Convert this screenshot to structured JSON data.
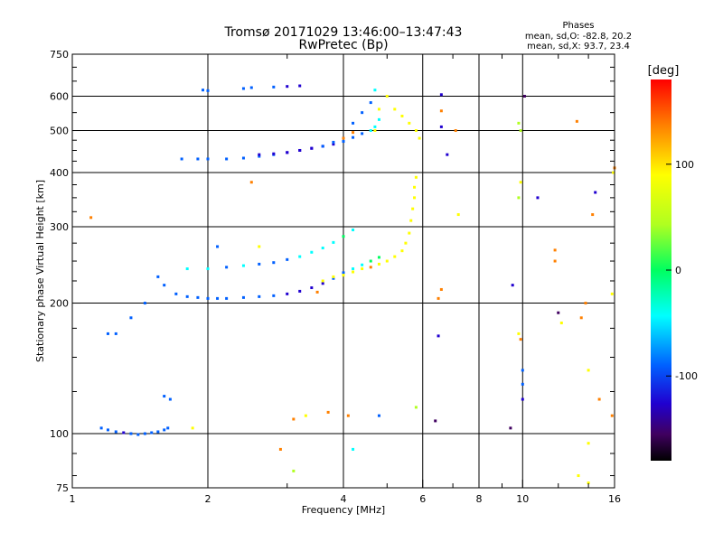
{
  "chart_data": {
    "type": "scatter",
    "title": "Tromsø 20171029 13:46:00–13:47:43",
    "subtitle": "RwPretec (Bp)",
    "xlabel": "Frequency [MHz]",
    "ylabel": "Stationary phase Virtual Height [km]",
    "xscale": "log",
    "yscale": "log",
    "xlim": [
      1,
      16
    ],
    "ylim": [
      75,
      750
    ],
    "x_ticks": [
      "1",
      "2",
      "4",
      "6",
      "8",
      "10",
      "16"
    ],
    "y_ticks": [
      "75",
      "100",
      "200",
      "300",
      "400",
      "500",
      "600",
      "750"
    ],
    "x_gridlines": [
      2,
      4,
      6,
      8,
      10
    ],
    "y_gridlines": [
      100,
      200,
      300,
      400,
      500,
      600
    ],
    "grid": true,
    "phases_box": {
      "title": "Phases",
      "line1": "mean, sd,O: -82.8, 20.2",
      "line2": "mean, sd,X:  93.7, 23.4"
    },
    "colorbar": {
      "unit": "[deg]",
      "tick_labels": [
        "100",
        "0",
        "-100"
      ],
      "tick_values": [
        100,
        0,
        -100
      ],
      "range": [
        -180,
        180
      ]
    },
    "series": [
      {
        "values": [
          [
            1.16,
            103,
            -95
          ],
          [
            1.2,
            102,
            -100
          ],
          [
            1.25,
            101,
            -105
          ],
          [
            1.3,
            100.5,
            -110
          ],
          [
            1.35,
            100,
            -105
          ],
          [
            1.4,
            99.5,
            -100
          ],
          [
            1.45,
            100,
            -100
          ],
          [
            1.5,
            100.5,
            -95
          ],
          [
            1.55,
            101,
            -100
          ],
          [
            1.6,
            102,
            -95
          ],
          [
            1.63,
            103,
            -100
          ],
          [
            1.2,
            170,
            -100
          ],
          [
            1.25,
            170,
            -95
          ],
          [
            1.35,
            185,
            -100
          ],
          [
            1.45,
            200,
            -95
          ],
          [
            1.6,
            122,
            -100
          ],
          [
            1.65,
            120,
            -95
          ],
          [
            1.55,
            230,
            -80
          ],
          [
            1.6,
            220,
            -70
          ],
          [
            1.7,
            210,
            -75
          ],
          [
            1.8,
            207,
            -80
          ],
          [
            1.9,
            206,
            -85
          ],
          [
            2.0,
            205,
            -90
          ],
          [
            2.1,
            205,
            -80
          ],
          [
            2.2,
            205,
            -85
          ],
          [
            2.4,
            206,
            -80
          ],
          [
            2.6,
            207,
            -90
          ],
          [
            2.8,
            208,
            -100
          ],
          [
            3.0,
            210,
            -110
          ],
          [
            3.2,
            213,
            -120
          ],
          [
            3.4,
            217,
            -130
          ],
          [
            3.6,
            222,
            -120
          ],
          [
            3.8,
            228,
            -100
          ],
          [
            4.0,
            235,
            -80
          ],
          [
            4.2,
            240,
            -60
          ],
          [
            4.4,
            245,
            -40
          ],
          [
            4.6,
            250,
            -20
          ],
          [
            4.8,
            255,
            0
          ]
        ]
      },
      {
        "values": [
          [
            1.8,
            240,
            -60
          ],
          [
            2.0,
            240,
            -50
          ],
          [
            2.2,
            242,
            -70
          ],
          [
            2.4,
            244,
            -60
          ],
          [
            2.6,
            246,
            -80
          ],
          [
            2.8,
            248,
            -70
          ],
          [
            3.0,
            252,
            -90
          ],
          [
            3.2,
            256,
            -60
          ],
          [
            3.4,
            262,
            -50
          ],
          [
            3.6,
            268,
            -40
          ],
          [
            3.8,
            276,
            -30
          ],
          [
            4.0,
            285,
            -20
          ],
          [
            4.2,
            295,
            -40
          ]
        ]
      },
      {
        "values": [
          [
            3.6,
            225,
            100
          ],
          [
            3.8,
            230,
            110
          ],
          [
            4.0,
            232,
            90
          ],
          [
            4.2,
            236,
            100
          ],
          [
            4.4,
            240,
            80
          ],
          [
            4.6,
            242,
            120
          ],
          [
            4.8,
            246,
            100
          ],
          [
            5.0,
            250,
            110
          ],
          [
            5.2,
            256,
            100
          ],
          [
            5.4,
            264,
            80
          ],
          [
            5.5,
            275,
            100
          ],
          [
            5.6,
            290,
            90
          ],
          [
            5.65,
            310,
            100
          ],
          [
            5.7,
            330,
            80
          ],
          [
            5.75,
            350,
            90
          ],
          [
            5.75,
            370,
            100
          ],
          [
            5.8,
            390,
            80
          ]
        ]
      },
      {
        "values": [
          [
            1.75,
            430,
            -90
          ],
          [
            1.9,
            430,
            -85
          ],
          [
            2.0,
            430,
            -95
          ],
          [
            2.2,
            430,
            -90
          ],
          [
            2.4,
            432,
            -100
          ],
          [
            2.6,
            436,
            -90
          ],
          [
            2.8,
            440,
            -100
          ],
          [
            3.0,
            445,
            -110
          ],
          [
            3.2,
            450,
            -120
          ],
          [
            3.4,
            455,
            -130
          ],
          [
            3.6,
            460,
            -120
          ],
          [
            3.8,
            465,
            -110
          ],
          [
            4.0,
            472,
            -100
          ],
          [
            4.2,
            482,
            -90
          ],
          [
            4.4,
            492,
            -80
          ],
          [
            4.6,
            500,
            -60
          ],
          [
            4.7,
            510,
            -50
          ],
          [
            4.8,
            530,
            -30
          ]
        ]
      },
      {
        "values": [
          [
            2.6,
            440,
            -120
          ],
          [
            2.8,
            442,
            -130
          ],
          [
            3.0,
            445,
            -130
          ],
          [
            3.2,
            450,
            -140
          ],
          [
            3.4,
            455,
            -120
          ],
          [
            3.6,
            460,
            -100
          ],
          [
            3.8,
            470,
            -90
          ],
          [
            4.0,
            480,
            -80
          ],
          [
            4.2,
            520,
            -100
          ],
          [
            4.4,
            550,
            -80
          ],
          [
            4.6,
            580,
            -70
          ],
          [
            4.7,
            620,
            -60
          ]
        ]
      },
      {
        "values": [
          [
            4.7,
            500,
            90
          ],
          [
            4.8,
            560,
            100
          ],
          [
            5.0,
            600,
            90
          ],
          [
            5.2,
            560,
            110
          ],
          [
            5.4,
            540,
            100
          ],
          [
            5.6,
            520,
            80
          ],
          [
            5.8,
            500,
            90
          ],
          [
            5.9,
            480,
            100
          ],
          [
            4.0,
            480,
            120
          ],
          [
            4.2,
            495,
            140
          ]
        ]
      },
      {
        "values": [
          [
            1.95,
            620,
            -90
          ],
          [
            2.0,
            618,
            -85
          ],
          [
            2.4,
            625,
            -95
          ],
          [
            2.5,
            628,
            -90
          ],
          [
            2.8,
            630,
            -100
          ],
          [
            3.0,
            632,
            -110
          ],
          [
            3.2,
            634,
            -120
          ]
        ]
      },
      {
        "values": [
          [
            1.1,
            315,
            120
          ],
          [
            3.5,
            212,
            130
          ],
          [
            1.85,
            103,
            110
          ],
          [
            2.9,
            92,
            140
          ],
          [
            3.1,
            108,
            120
          ],
          [
            3.3,
            110,
            110
          ],
          [
            3.7,
            112,
            140
          ],
          [
            4.1,
            110,
            120
          ],
          [
            4.2,
            92,
            -40
          ],
          [
            4.8,
            110,
            -100
          ],
          [
            5.8,
            115,
            40
          ],
          [
            6.4,
            107,
            -150
          ],
          [
            6.5,
            168,
            -120
          ],
          [
            6.5,
            205,
            140
          ],
          [
            6.6,
            215,
            150
          ],
          [
            6.8,
            440,
            -120
          ],
          [
            7.1,
            500,
            150
          ],
          [
            6.6,
            605,
            -140
          ],
          [
            6.6,
            555,
            150
          ],
          [
            6.6,
            510,
            -120
          ],
          [
            7.2,
            320,
            80
          ],
          [
            9.4,
            103,
            -150
          ],
          [
            9.5,
            220,
            -120
          ],
          [
            9.8,
            170,
            110
          ],
          [
            9.9,
            165,
            120
          ],
          [
            10.0,
            140,
            -90
          ],
          [
            10.0,
            130,
            -100
          ],
          [
            10.0,
            120,
            -140
          ],
          [
            9.8,
            350,
            60
          ],
          [
            9.9,
            380,
            90
          ],
          [
            10.1,
            600,
            -150
          ],
          [
            10.8,
            350,
            -120
          ],
          [
            11.8,
            265,
            140
          ],
          [
            11.8,
            250,
            150
          ],
          [
            12.0,
            190,
            -150
          ],
          [
            12.2,
            180,
            110
          ],
          [
            13.2,
            525,
            120
          ],
          [
            13.5,
            185,
            120
          ],
          [
            13.8,
            200,
            150
          ],
          [
            14.0,
            140,
            110
          ],
          [
            14.0,
            95,
            100
          ],
          [
            14.3,
            320,
            130
          ],
          [
            14.5,
            360,
            -120
          ],
          [
            14.8,
            120,
            130
          ],
          [
            15.8,
            110,
            140
          ],
          [
            15.8,
            210,
            110
          ],
          [
            15.9,
            400,
            110
          ],
          [
            16.0,
            410,
            140
          ],
          [
            9.8,
            520,
            50
          ],
          [
            9.9,
            500,
            60
          ],
          [
            13.3,
            80,
            80
          ],
          [
            14.0,
            77,
            110
          ],
          [
            2.5,
            380,
            140
          ],
          [
            3.1,
            82,
            40
          ],
          [
            2.1,
            270,
            -100
          ],
          [
            2.6,
            270,
            110
          ]
        ]
      }
    ]
  }
}
